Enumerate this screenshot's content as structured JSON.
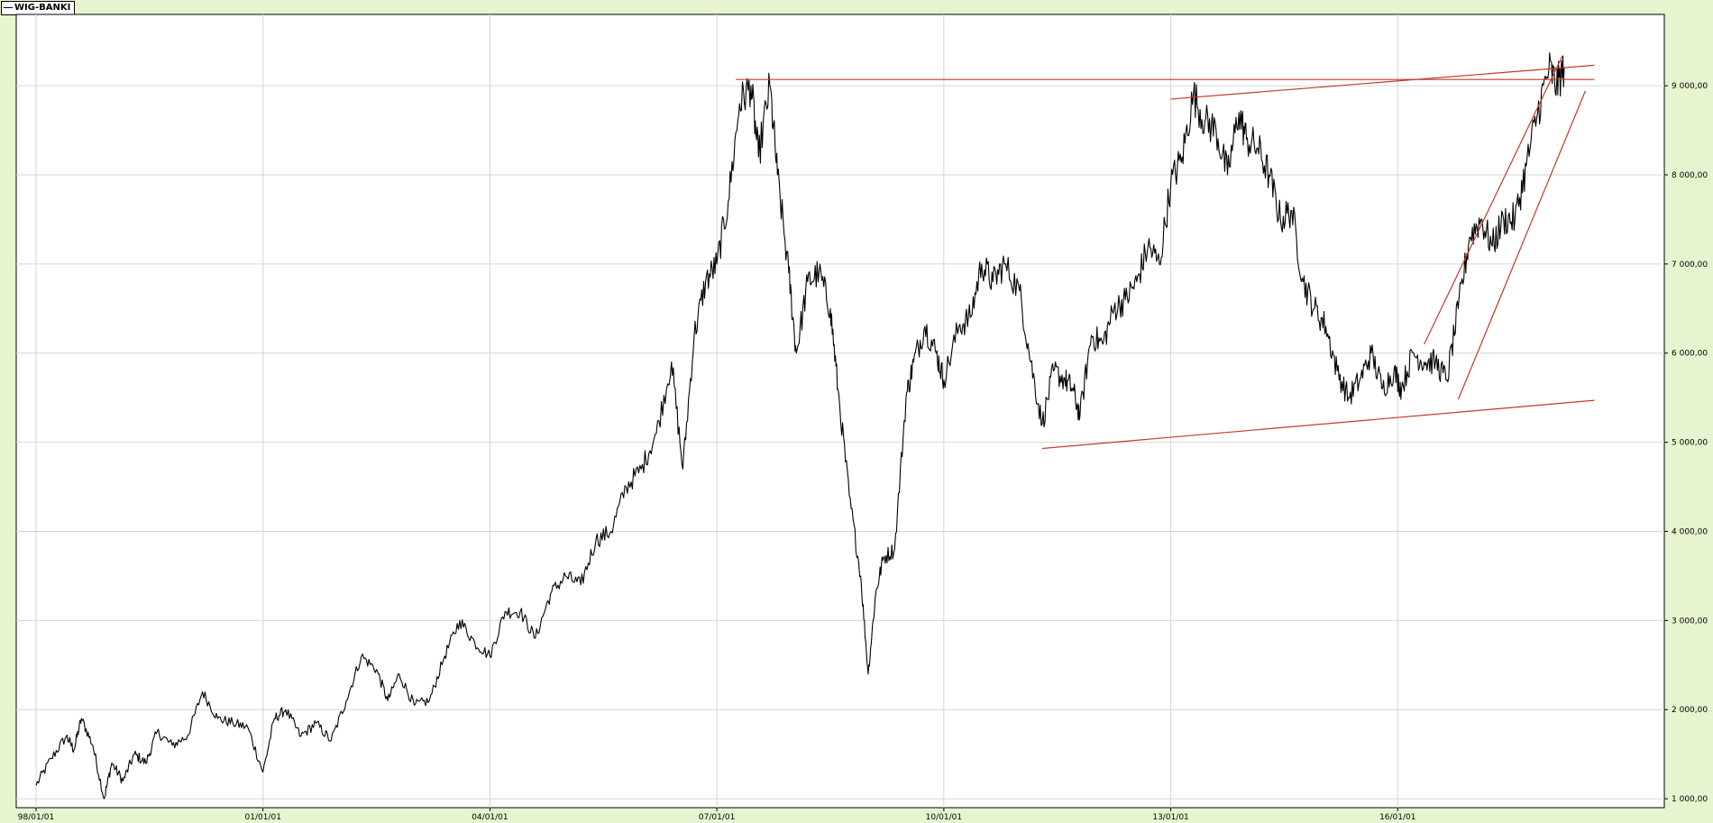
{
  "legend": {
    "label": "WIG-BANKI"
  },
  "colors": {
    "background": "#e6f5d0",
    "plot": "#ffffff",
    "series": "#000000",
    "trendlines": "#c0392b",
    "grid": "#d6d6d6"
  },
  "chart_data": {
    "type": "line",
    "title": "",
    "xlabel": "",
    "ylabel": "",
    "x_type": "year",
    "xlim": [
      1998.0,
      2019.0
    ],
    "ylim": [
      900,
      9800
    ],
    "grid": true,
    "legend_position": "top-left",
    "x_ticks": [
      {
        "x": 1998.0,
        "label": "98/01/01"
      },
      {
        "x": 2001.0,
        "label": "01/01/01"
      },
      {
        "x": 2004.0,
        "label": "04/01/01"
      },
      {
        "x": 2007.0,
        "label": "07/01/01"
      },
      {
        "x": 2010.0,
        "label": "10/01/01"
      },
      {
        "x": 2013.0,
        "label": "13/01/01"
      },
      {
        "x": 2016.0,
        "label": "16/01/01"
      }
    ],
    "y_ticks": [
      {
        "y": 1000,
        "label": "1 000,00"
      },
      {
        "y": 2000,
        "label": "2 000,00"
      },
      {
        "y": 3000,
        "label": "3 000,00"
      },
      {
        "y": 4000,
        "label": "4 000,00"
      },
      {
        "y": 5000,
        "label": "5 000,00"
      },
      {
        "y": 6000,
        "label": "6 000,00"
      },
      {
        "y": 7000,
        "label": "7 000,00"
      },
      {
        "y": 8000,
        "label": "8 000,00"
      },
      {
        "y": 9000,
        "label": "9 000,00"
      }
    ],
    "series": [
      {
        "name": "WIG-BANKI",
        "x": [
          1998.0,
          1998.2,
          1998.4,
          1998.5,
          1998.6,
          1998.75,
          1998.9,
          1999.0,
          1999.15,
          1999.3,
          1999.45,
          1999.6,
          1999.8,
          2000.0,
          2000.2,
          2000.4,
          2000.6,
          2000.8,
          2001.0,
          2001.15,
          2001.3,
          2001.5,
          2001.7,
          2001.9,
          2002.1,
          2002.3,
          2002.5,
          2002.65,
          2002.8,
          2003.0,
          2003.2,
          2003.4,
          2003.6,
          2003.8,
          2004.0,
          2004.2,
          2004.4,
          2004.6,
          2004.8,
          2005.0,
          2005.2,
          2005.4,
          2005.6,
          2005.8,
          2006.0,
          2006.2,
          2006.4,
          2006.55,
          2006.7,
          2006.85,
          2007.0,
          2007.15,
          2007.3,
          2007.45,
          2007.55,
          2007.7,
          2007.8,
          2007.95,
          2008.05,
          2008.2,
          2008.35,
          2008.5,
          2008.6,
          2008.75,
          2008.9,
          2009.0,
          2009.1,
          2009.2,
          2009.35,
          2009.5,
          2009.6,
          2009.75,
          2009.9,
          2010.0,
          2010.2,
          2010.35,
          2010.5,
          2010.65,
          2010.8,
          2011.0,
          2011.15,
          2011.3,
          2011.45,
          2011.6,
          2011.7,
          2011.8,
          2011.95,
          2012.1,
          2012.25,
          2012.4,
          2012.55,
          2012.7,
          2012.85,
          2013.0,
          2013.15,
          2013.3,
          2013.45,
          2013.6,
          2013.75,
          2013.9,
          2014.0,
          2014.15,
          2014.3,
          2014.45,
          2014.6,
          2014.75,
          2014.9,
          2015.05,
          2015.2,
          2015.35,
          2015.5,
          2015.65,
          2015.8,
          2015.95,
          2016.05,
          2016.2,
          2016.35,
          2016.5,
          2016.65,
          2016.8,
          2016.95,
          2017.1,
          2017.25,
          2017.4,
          2017.55,
          2017.7,
          2017.85,
          2018.0,
          2018.1,
          2018.2
        ],
        "y": [
          1150,
          1450,
          1700,
          1550,
          1900,
          1600,
          1000,
          1400,
          1200,
          1500,
          1400,
          1750,
          1600,
          1700,
          2200,
          1900,
          1850,
          1800,
          1300,
          1900,
          2000,
          1700,
          1850,
          1650,
          2100,
          2600,
          2450,
          2100,
          2400,
          2050,
          2100,
          2600,
          3000,
          2750,
          2600,
          3100,
          3100,
          2800,
          3300,
          3500,
          3400,
          3900,
          4000,
          4500,
          4700,
          5100,
          5900,
          4700,
          6200,
          6800,
          7000,
          7700,
          8800,
          9000,
          8200,
          9000,
          8000,
          6900,
          6000,
          6800,
          6900,
          6500,
          5600,
          4400,
          3500,
          2400,
          3300,
          3700,
          3800,
          5500,
          5900,
          6300,
          6000,
          5700,
          6300,
          6400,
          7000,
          6800,
          7000,
          6700,
          5900,
          5200,
          5800,
          5700,
          5600,
          5300,
          6200,
          6100,
          6500,
          6600,
          6800,
          7200,
          7000,
          7900,
          8200,
          8900,
          8600,
          8500,
          8000,
          8700,
          8400,
          8300,
          8000,
          7500,
          7600,
          6800,
          6500,
          6300,
          5800,
          5500,
          5700,
          6000,
          5600,
          5800,
          5600,
          6000,
          5900,
          5900,
          5700,
          6500,
          7300,
          7500,
          7200,
          7500,
          7500,
          8100,
          8700,
          9200,
          9000,
          9200
        ]
      }
    ],
    "trendlines": [
      {
        "x1": 2007.25,
        "y1": 9070,
        "x2": 2018.6,
        "y2": 9070
      },
      {
        "x1": 2013.0,
        "y1": 8850,
        "x2": 2018.6,
        "y2": 9230
      },
      {
        "x1": 2011.3,
        "y1": 4930,
        "x2": 2018.6,
        "y2": 5470
      },
      {
        "x1": 2016.35,
        "y1": 6100,
        "x2": 2018.18,
        "y2": 9340
      },
      {
        "x1": 2016.8,
        "y1": 5480,
        "x2": 2018.48,
        "y2": 8940
      }
    ]
  }
}
